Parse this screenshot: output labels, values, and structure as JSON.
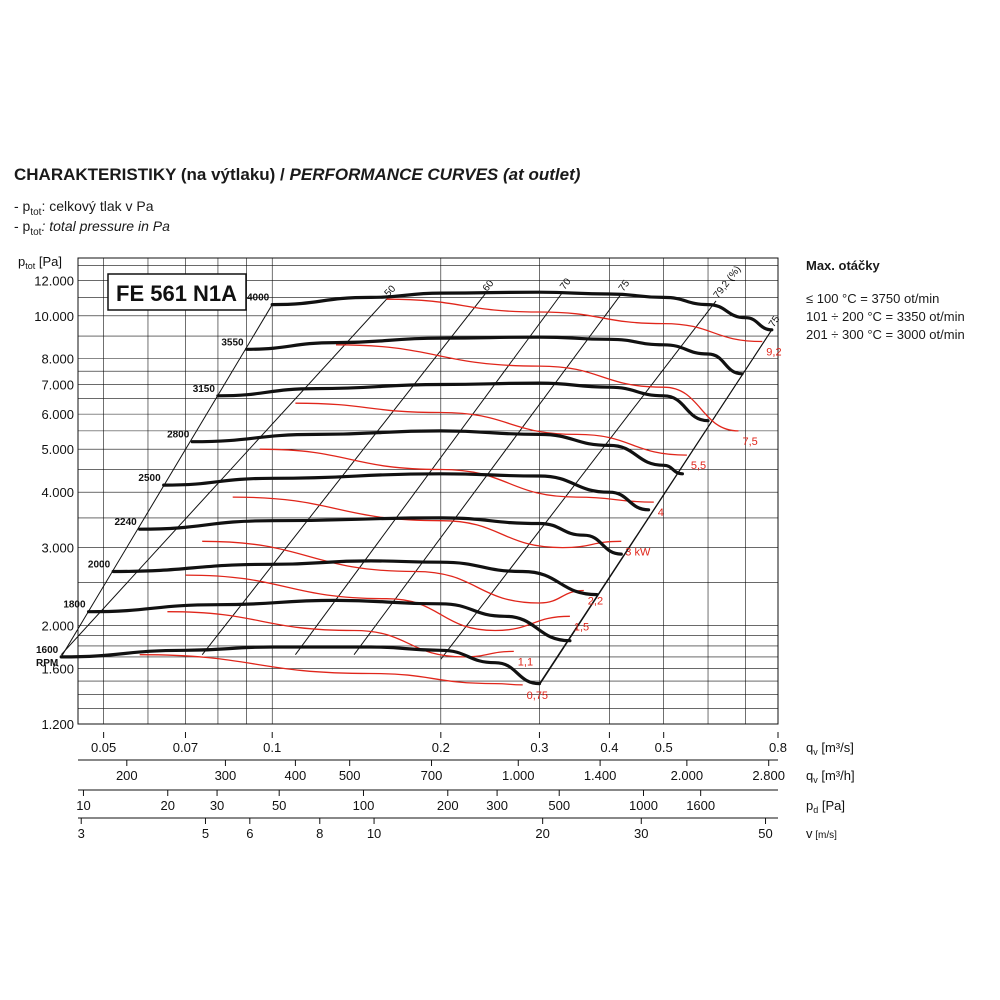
{
  "header": {
    "title_main": "CHARAKTERISTIKY (na výtlaku) / ",
    "title_italic": "PERFORMANCE CURVES (at outlet)",
    "legend_cz_prefix": "- p",
    "legend_sub": "tot",
    "legend_cz_text": ": celkový tlak v Pa",
    "legend_en_text": ": total pressure in Pa"
  },
  "side_panel": {
    "heading": "Max. otáčky",
    "lines": [
      "≤ 100 °C = 3750 ot/min",
      "101 ÷ 200 °C = 3350 ot/min",
      "201 ÷ 300 °C = 3000 ot/min"
    ]
  },
  "chart_data": {
    "type": "line",
    "model_label": "FE 561 N1A",
    "ylabel_main": "p",
    "ylabel_sub": "tot",
    "ylabel_unit": " [Pa]",
    "y_scale": "log",
    "ylim": [
      1200,
      13500
    ],
    "y_ticks": [
      {
        "v": 12000,
        "label": "12.000"
      },
      {
        "v": 10000,
        "label": "10.000"
      },
      {
        "v": 8000,
        "label": "8.000"
      },
      {
        "v": 7000,
        "label": "7.000"
      },
      {
        "v": 6000,
        "label": "6.000"
      },
      {
        "v": 5000,
        "label": "5.000"
      },
      {
        "v": 4000,
        "label": "4.000"
      },
      {
        "v": 3000,
        "label": "3.000"
      },
      {
        "v": 2000,
        "label": "2.000"
      },
      {
        "v": 1600,
        "label": "1.600"
      },
      {
        "v": 1200,
        "label": "1.200"
      }
    ],
    "x_scale": "log",
    "xlim": [
      0.045,
      0.8
    ],
    "axes": [
      {
        "name": "qv [m³/s]",
        "label_main": "q",
        "label_sub": "v",
        "label_unit": " [m³/s]",
        "ticks": [
          {
            "v": 0.05,
            "label": "0.05"
          },
          {
            "v": 0.07,
            "label": "0.07"
          },
          {
            "v": 0.1,
            "label": "0.1"
          },
          {
            "v": 0.2,
            "label": "0.2"
          },
          {
            "v": 0.3,
            "label": "0.3"
          },
          {
            "v": 0.4,
            "label": "0.4"
          },
          {
            "v": 0.5,
            "label": "0.5"
          },
          {
            "v": 0.8,
            "label": "0.8"
          }
        ]
      },
      {
        "name": "qv [m³/h]",
        "label_main": "q",
        "label_sub": "v",
        "label_unit": " [m³/h]",
        "ticks": [
          {
            "v": 200,
            "label": "200"
          },
          {
            "v": 300,
            "label": "300"
          },
          {
            "v": 400,
            "label": "400"
          },
          {
            "v": 500,
            "label": "500"
          },
          {
            "v": 700,
            "label": "700"
          },
          {
            "v": 1000,
            "label": "1.000"
          },
          {
            "v": 1400,
            "label": "1.400"
          },
          {
            "v": 2000,
            "label": "2.000"
          },
          {
            "v": 2800,
            "label": "2.800"
          }
        ]
      },
      {
        "name": "pd [Pa]",
        "label_main": "p",
        "label_sub": "d",
        "label_unit": " [Pa]",
        "ticks": [
          {
            "v": 10,
            "label": "10"
          },
          {
            "v": 20,
            "label": "20"
          },
          {
            "v": 30,
            "label": "30"
          },
          {
            "v": 50,
            "label": "50"
          },
          {
            "v": 100,
            "label": "100"
          },
          {
            "v": 200,
            "label": "200"
          },
          {
            "v": 300,
            "label": "300"
          },
          {
            "v": 500,
            "label": "500"
          },
          {
            "v": 1000,
            "label": "1000"
          },
          {
            "v": 1600,
            "label": "1600"
          }
        ]
      },
      {
        "name": "v [m/s]",
        "label_main": "v",
        "label_sub": "",
        "label_unit": " [m/s]",
        "ticks": [
          {
            "v": 3,
            "label": "3"
          },
          {
            "v": 5,
            "label": "5"
          },
          {
            "v": 6,
            "label": "6"
          },
          {
            "v": 8,
            "label": "8"
          },
          {
            "v": 10,
            "label": "10"
          },
          {
            "v": 20,
            "label": "20"
          },
          {
            "v": 30,
            "label": "30"
          },
          {
            "v": 50,
            "label": "50"
          }
        ]
      }
    ],
    "rpm_unit_label": "RPM",
    "series": [
      {
        "name": "4000",
        "points": [
          [
            0.1,
            10600
          ],
          [
            0.15,
            11000
          ],
          [
            0.2,
            11250
          ],
          [
            0.3,
            11300
          ],
          [
            0.4,
            11200
          ],
          [
            0.5,
            11000
          ],
          [
            0.6,
            10600
          ],
          [
            0.7,
            9900
          ],
          [
            0.78,
            9300
          ]
        ]
      },
      {
        "name": "3550",
        "points": [
          [
            0.09,
            8400
          ],
          [
            0.13,
            8700
          ],
          [
            0.2,
            8900
          ],
          [
            0.3,
            8950
          ],
          [
            0.4,
            8850
          ],
          [
            0.5,
            8600
          ],
          [
            0.6,
            8200
          ],
          [
            0.69,
            7400
          ]
        ]
      },
      {
        "name": "3150",
        "points": [
          [
            0.08,
            6600
          ],
          [
            0.12,
            6850
          ],
          [
            0.2,
            7000
          ],
          [
            0.3,
            7050
          ],
          [
            0.4,
            6900
          ],
          [
            0.5,
            6600
          ],
          [
            0.6,
            5800
          ]
        ]
      },
      {
        "name": "2800",
        "points": [
          [
            0.072,
            5200
          ],
          [
            0.12,
            5400
          ],
          [
            0.2,
            5500
          ],
          [
            0.3,
            5400
          ],
          [
            0.4,
            5100
          ],
          [
            0.5,
            4600
          ],
          [
            0.54,
            4400
          ]
        ]
      },
      {
        "name": "2500",
        "points": [
          [
            0.064,
            4150
          ],
          [
            0.1,
            4300
          ],
          [
            0.2,
            4400
          ],
          [
            0.3,
            4350
          ],
          [
            0.4,
            4000
          ],
          [
            0.47,
            3650
          ]
        ]
      },
      {
        "name": "2240",
        "points": [
          [
            0.058,
            3300
          ],
          [
            0.1,
            3450
          ],
          [
            0.2,
            3500
          ],
          [
            0.3,
            3400
          ],
          [
            0.36,
            3200
          ],
          [
            0.42,
            2900
          ]
        ]
      },
      {
        "name": "2000",
        "points": [
          [
            0.052,
            2650
          ],
          [
            0.1,
            2750
          ],
          [
            0.15,
            2800
          ],
          [
            0.2,
            2780
          ],
          [
            0.28,
            2650
          ],
          [
            0.38,
            2350
          ]
        ]
      },
      {
        "name": "1800",
        "points": [
          [
            0.047,
            2150
          ],
          [
            0.08,
            2230
          ],
          [
            0.13,
            2280
          ],
          [
            0.2,
            2240
          ],
          [
            0.26,
            2100
          ],
          [
            0.34,
            1850
          ]
        ]
      },
      {
        "name": "1600",
        "points": [
          [
            0.042,
            1700
          ],
          [
            0.07,
            1760
          ],
          [
            0.1,
            1790
          ],
          [
            0.15,
            1790
          ],
          [
            0.2,
            1760
          ],
          [
            0.25,
            1650
          ],
          [
            0.3,
            1480
          ]
        ]
      }
    ],
    "efficiency_lines": [
      {
        "label": "50",
        "points": [
          [
            0.042,
            1720
          ],
          [
            0.16,
            10900
          ]
        ]
      },
      {
        "label": "60",
        "points": [
          [
            0.075,
            1720
          ],
          [
            0.24,
            11200
          ]
        ]
      },
      {
        "label": "70",
        "points": [
          [
            0.11,
            1720
          ],
          [
            0.33,
            11300
          ]
        ]
      },
      {
        "label": "75",
        "points": [
          [
            0.14,
            1720
          ],
          [
            0.42,
            11200
          ]
        ]
      },
      {
        "label": "79,2 (%)",
        "points": [
          [
            0.2,
            1680
          ],
          [
            0.62,
            10800
          ]
        ]
      },
      {
        "label": "75",
        "points": [
          [
            0.3,
            1470
          ],
          [
            0.78,
            9300
          ]
        ]
      }
    ],
    "power_curves": [
      {
        "label": "9,2",
        "points": [
          [
            0.16,
            10900
          ],
          [
            0.3,
            10200
          ],
          [
            0.5,
            9600
          ],
          [
            0.75,
            8750
          ]
        ]
      },
      {
        "label": "7,5",
        "points": [
          [
            0.13,
            8600
          ],
          [
            0.3,
            7700
          ],
          [
            0.5,
            6900
          ],
          [
            0.68,
            5500
          ]
        ]
      },
      {
        "label": "5,5",
        "points": [
          [
            0.11,
            6350
          ],
          [
            0.2,
            6050
          ],
          [
            0.35,
            5400
          ],
          [
            0.55,
            4850
          ]
        ]
      },
      {
        "label": "4",
        "points": [
          [
            0.095,
            5000
          ],
          [
            0.2,
            4500
          ],
          [
            0.35,
            3900
          ],
          [
            0.48,
            3800
          ]
        ]
      },
      {
        "label": "3 kW",
        "points": [
          [
            0.085,
            3900
          ],
          [
            0.2,
            3450
          ],
          [
            0.33,
            3000
          ],
          [
            0.42,
            3100
          ]
        ]
      },
      {
        "label": "2,2",
        "points": [
          [
            0.075,
            3100
          ],
          [
            0.18,
            2650
          ],
          [
            0.3,
            2250
          ],
          [
            0.36,
            2400
          ]
        ]
      },
      {
        "label": "1,5",
        "points": [
          [
            0.07,
            2600
          ],
          [
            0.16,
            2300
          ],
          [
            0.25,
            1950
          ],
          [
            0.34,
            2100
          ]
        ]
      },
      {
        "label": "1,1",
        "points": [
          [
            0.065,
            2150
          ],
          [
            0.14,
            1950
          ],
          [
            0.22,
            1700
          ],
          [
            0.27,
            1750
          ]
        ]
      },
      {
        "label": "0,75",
        "points": [
          [
            0.058,
            1720
          ],
          [
            0.15,
            1560
          ],
          [
            0.25,
            1480
          ],
          [
            0.28,
            1470
          ]
        ]
      }
    ]
  }
}
